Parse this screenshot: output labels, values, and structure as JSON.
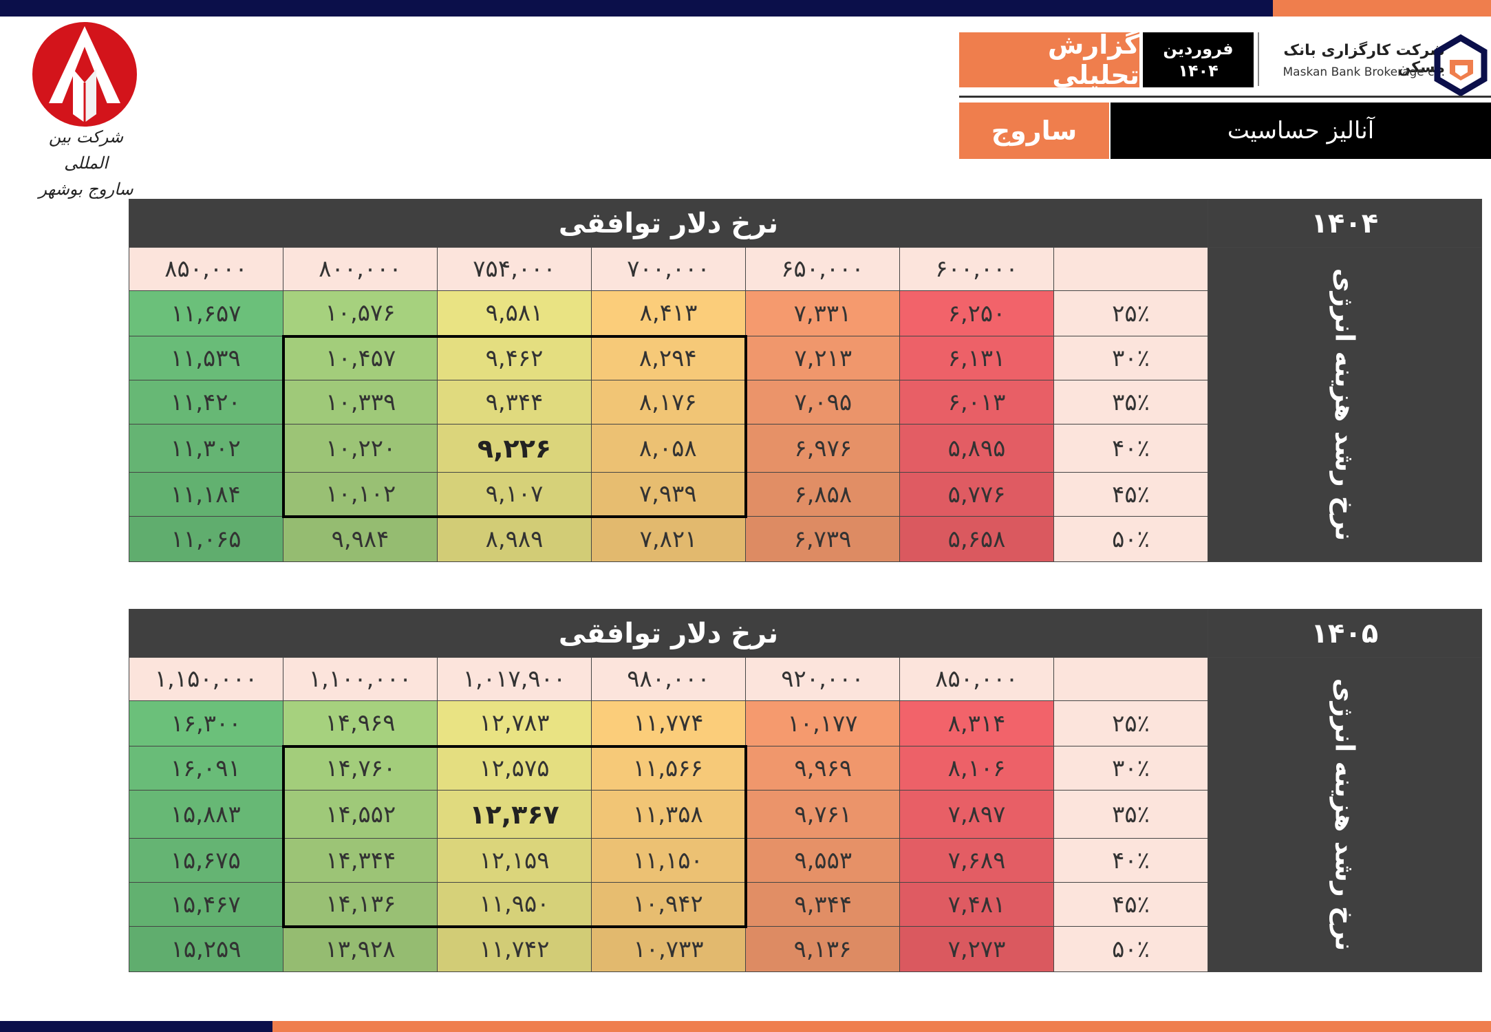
{
  "header": {
    "report_label": "گزارش تحلیلی",
    "month": "فروردین",
    "year": "۱۴۰۴",
    "brokerage_fa": "شرکت کارگزاری بانک مسکن",
    "brokerage_en": "Maskan Bank Brokerage co.",
    "symbol": "ساروج",
    "analysis_title": "آنالیز حساسیت"
  },
  "left_logo": {
    "line1": "شرکت بین المللی",
    "line2": "ساروج بوشهر"
  },
  "colors": {
    "navy": "#0b0f4a",
    "orange": "#ef7e4d",
    "dark_header": "#404040",
    "light_header": "#fce4dc"
  },
  "tables": [
    {
      "year": "۱۴۰۴",
      "title": "نرخ دلار توافقی",
      "side_label": "نرخ رشد هزینه انرژی",
      "columns": [
        "۶۰۰,۰۰۰",
        "۶۵۰,۰۰۰",
        "۷۰۰,۰۰۰",
        "۷۵۴,۰۰۰",
        "۸۰۰,۰۰۰",
        "۸۵۰,۰۰۰"
      ],
      "rows": [
        {
          "label": "۲۵٪",
          "values": [
            "۶,۲۵۰",
            "۷,۳۳۱",
            "۸,۴۱۳",
            "۹,۵۸۱",
            "۱۰,۵۷۶",
            "۱۱,۶۵۷"
          ]
        },
        {
          "label": "۳۰٪",
          "values": [
            "۶,۱۳۱",
            "۷,۲۱۳",
            "۸,۲۹۴",
            "۹,۴۶۲",
            "۱۰,۴۵۷",
            "۱۱,۵۳۹"
          ]
        },
        {
          "label": "۳۵٪",
          "values": [
            "۶,۰۱۳",
            "۷,۰۹۵",
            "۸,۱۷۶",
            "۹,۳۴۴",
            "۱۰,۳۳۹",
            "۱۱,۴۲۰"
          ]
        },
        {
          "label": "۴۰٪",
          "values": [
            "۵,۸۹۵",
            "۶,۹۷۶",
            "۸,۰۵۸",
            "۹,۲۲۶",
            "۱۰,۲۲۰",
            "۱۱,۳۰۲"
          ]
        },
        {
          "label": "۴۵٪",
          "values": [
            "۵,۷۷۶",
            "۶,۸۵۸",
            "۷,۹۳۹",
            "۹,۱۰۷",
            "۱۰,۱۰۲",
            "۱۱,۱۸۴"
          ]
        },
        {
          "label": "۵۰٪",
          "values": [
            "۵,۶۵۸",
            "۶,۷۳۹",
            "۷,۸۲۱",
            "۸,۹۸۹",
            "۹,۹۸۴",
            "۱۱,۰۶۵"
          ]
        }
      ],
      "base_case": {
        "row": 3,
        "col": 3
      }
    },
    {
      "year": "۱۴۰۵",
      "title": "نرخ دلار توافقی",
      "side_label": "نرخ رشد هزینه انرژی",
      "columns": [
        "۸۵۰,۰۰۰",
        "۹۲۰,۰۰۰",
        "۹۸۰,۰۰۰",
        "۱,۰۱۷,۹۰۰",
        "۱,۱۰۰,۰۰۰",
        "۱,۱۵۰,۰۰۰"
      ],
      "rows": [
        {
          "label": "۲۵٪",
          "values": [
            "۸,۳۱۴",
            "۱۰,۱۷۷",
            "۱۱,۷۷۴",
            "۱۲,۷۸۳",
            "۱۴,۹۶۹",
            "۱۶,۳۰۰"
          ]
        },
        {
          "label": "۳۰٪",
          "values": [
            "۸,۱۰۶",
            "۹,۹۶۹",
            "۱۱,۵۶۶",
            "۱۲,۵۷۵",
            "۱۴,۷۶۰",
            "۱۶,۰۹۱"
          ]
        },
        {
          "label": "۳۵٪",
          "values": [
            "۷,۸۹۷",
            "۹,۷۶۱",
            "۱۱,۳۵۸",
            "۱۲,۳۶۷",
            "۱۴,۵۵۲",
            "۱۵,۸۸۳"
          ]
        },
        {
          "label": "۴۰٪",
          "values": [
            "۷,۶۸۹",
            "۹,۵۵۳",
            "۱۱,۱۵۰",
            "۱۲,۱۵۹",
            "۱۴,۳۴۴",
            "۱۵,۶۷۵"
          ]
        },
        {
          "label": "۴۵٪",
          "values": [
            "۷,۴۸۱",
            "۹,۳۴۴",
            "۱۰,۹۴۲",
            "۱۱,۹۵۰",
            "۱۴,۱۳۶",
            "۱۵,۴۶۷"
          ]
        },
        {
          "label": "۵۰٪",
          "values": [
            "۷,۲۷۳",
            "۹,۱۳۶",
            "۱۰,۷۳۳",
            "۱۱,۷۴۲",
            "۱۳,۹۲۸",
            "۱۵,۲۵۹"
          ]
        }
      ],
      "base_case": {
        "row": 2,
        "col": 3
      }
    }
  ]
}
